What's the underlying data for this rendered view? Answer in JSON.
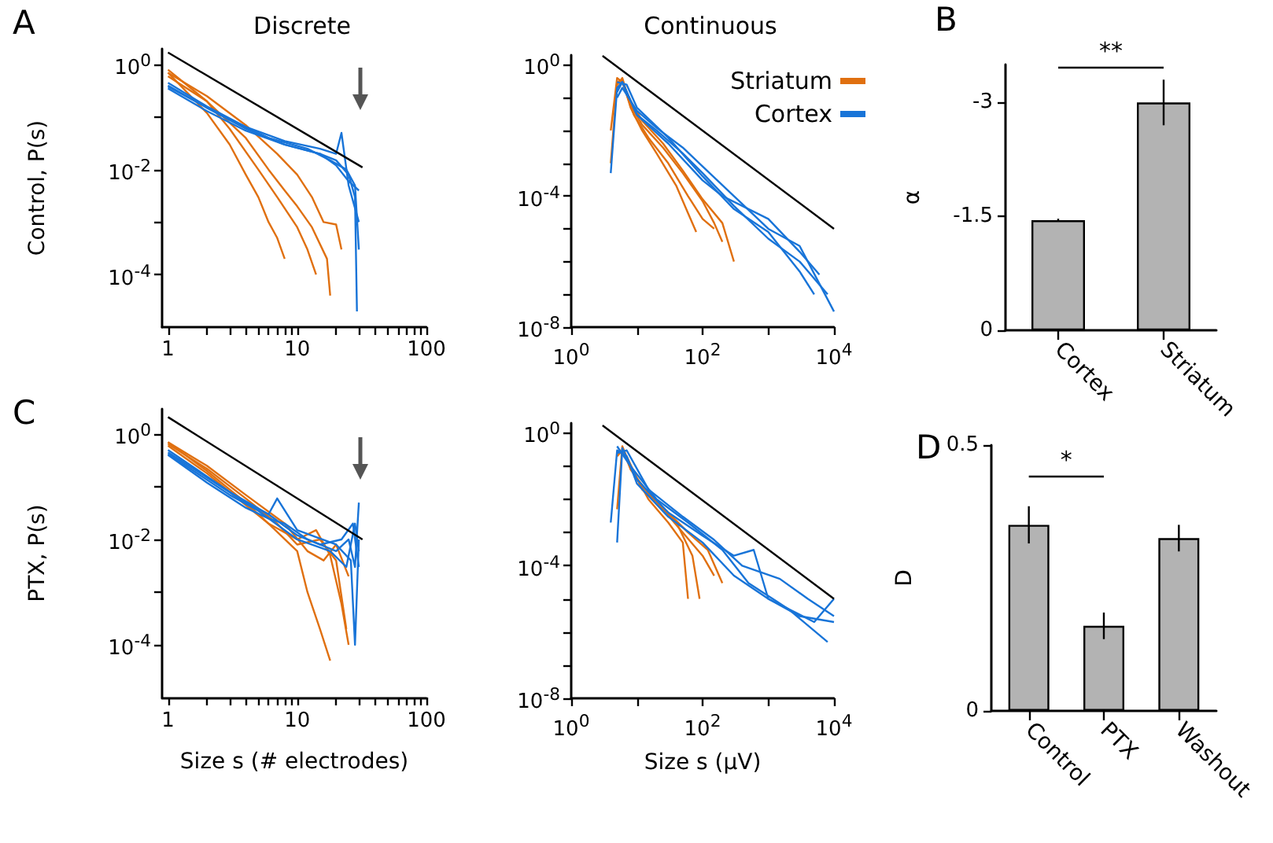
{
  "chart_data": [
    {
      "type": "line",
      "title": "Discrete",
      "ylabel": "Control, P(s)",
      "annotations": [
        "A"
      ],
      "log": "xy",
      "marker": "none",
      "xlim": [
        0.9,
        100
      ],
      "ylim": [
        1e-05,
        2
      ],
      "xticks": [
        1,
        {
          "value": 2,
          "label": null
        },
        {
          "value": 3,
          "label": null
        },
        {
          "value": 4,
          "label": null
        },
        {
          "value": 5,
          "label": null
        },
        {
          "value": 6,
          "label": null
        },
        {
          "value": 7,
          "label": null
        },
        {
          "value": 8,
          "label": null
        },
        {
          "value": 9,
          "label": null
        },
        10,
        {
          "value": 20,
          "label": null
        },
        {
          "value": 30,
          "label": null
        },
        {
          "value": 40,
          "label": null
        },
        {
          "value": 50,
          "label": null
        },
        {
          "value": 60,
          "label": null
        },
        {
          "value": 70,
          "label": null
        },
        {
          "value": 80,
          "label": null
        },
        {
          "value": 90,
          "label": null
        },
        100
      ],
      "yticks": [
        {
          "value": 1,
          "label": "10$^{0}$"
        },
        {
          "value": 0.1,
          "label": null
        },
        {
          "value": 0.01,
          "label": "10$^{-2}$"
        },
        {
          "value": 0.001,
          "label": null
        },
        {
          "value": 0.0001,
          "label": "10$^{-4}$"
        }
      ],
      "series": [
        {
          "color": "#e07010",
          "x": [
            1,
            2,
            3,
            4,
            5,
            6,
            7,
            8
          ],
          "values": [
            0.7,
            0.12,
            0.03,
            0.008,
            0.003,
            0.001,
            0.0005,
            0.0002
          ]
        },
        {
          "color": "#e07010",
          "x": [
            1,
            2,
            3,
            5,
            7,
            10,
            12,
            14
          ],
          "values": [
            0.8,
            0.2,
            0.06,
            0.01,
            0.003,
            0.0008,
            0.0003,
            0.0001
          ]
        },
        {
          "color": "#e07010",
          "x": [
            1,
            2,
            4,
            6,
            8,
            10,
            13,
            17,
            18
          ],
          "values": [
            0.6,
            0.2,
            0.04,
            0.01,
            0.004,
            0.002,
            0.0008,
            0.0002,
            4e-05
          ]
        },
        {
          "color": "#e07010",
          "x": [
            1,
            2,
            4,
            7,
            10,
            13,
            16,
            20,
            22
          ],
          "values": [
            0.7,
            0.25,
            0.07,
            0.02,
            0.008,
            0.003,
            0.001,
            0.0009,
            0.0003
          ]
        },
        {
          "color": "#1874d8",
          "x": [
            1,
            2,
            4,
            8,
            15,
            20,
            25,
            28,
            29
          ],
          "values": [
            0.4,
            0.15,
            0.06,
            0.03,
            0.02,
            0.015,
            0.008,
            0.003,
            2e-05
          ]
        },
        {
          "color": "#1874d8",
          "x": [
            1,
            2,
            4,
            8,
            15,
            20,
            25,
            30
          ],
          "values": [
            0.35,
            0.13,
            0.055,
            0.03,
            0.02,
            0.012,
            0.006,
            0.004
          ]
        },
        {
          "color": "#1874d8",
          "x": [
            1,
            2,
            4,
            8,
            15,
            20,
            22,
            25,
            30
          ],
          "values": [
            0.45,
            0.16,
            0.065,
            0.035,
            0.025,
            0.02,
            0.05,
            0.005,
            0.001
          ]
        },
        {
          "color": "#1874d8",
          "x": [
            1,
            3,
            6,
            12,
            18,
            24,
            28,
            30
          ],
          "values": [
            0.38,
            0.09,
            0.04,
            0.025,
            0.015,
            0.01,
            0.005,
            0.0003
          ]
        },
        {
          "color": "#000000",
          "x": [
            1,
            32
          ],
          "values": [
            1.7,
            0.011
          ]
        }
      ]
    },
    {
      "type": "line",
      "title": "Continuous",
      "legend": "top right",
      "log": "xy",
      "marker": "none",
      "xlim": [
        1,
        10000
      ],
      "ylim": [
        1e-08,
        2
      ],
      "xticks": [
        {
          "value": 1,
          "label": "10$^{0}$"
        },
        {
          "value": 10,
          "label": null
        },
        {
          "value": 100,
          "label": "10$^{2}$"
        },
        {
          "value": 1000,
          "label": null
        },
        {
          "value": 10000,
          "label": "10$^{4}$"
        }
      ],
      "yticks": [
        {
          "value": 1,
          "label": "10$^{0}$"
        },
        {
          "value": 0.1,
          "label": null
        },
        {
          "value": 0.01,
          "label": null
        },
        {
          "value": 0.001,
          "label": null
        },
        {
          "value": 0.0001,
          "label": "10$^{-4}$"
        },
        {
          "value": 1e-05,
          "label": null
        },
        {
          "value": 1e-06,
          "label": null
        },
        {
          "value": 1e-07,
          "label": null
        },
        {
          "value": 1e-08,
          "label": "10$^{-8}$"
        }
      ],
      "series": [
        {
          "name": "Striatum",
          "color": "#e07010",
          "x": [
            4,
            5,
            6,
            8,
            12,
            20,
            40,
            60,
            80
          ],
          "values": [
            0.001,
            0.3,
            0.35,
            0.05,
            0.01,
            0.002,
            0.0002,
            3e-05,
            8e-06
          ]
        },
        {
          "color": "#e07010",
          "x": [
            4,
            5,
            6,
            9,
            15,
            30,
            60,
            100,
            150
          ],
          "values": [
            0.01,
            0.4,
            0.3,
            0.03,
            0.006,
            0.001,
            0.0001,
            2e-05,
            1e-05
          ]
        },
        {
          "color": "#e07010",
          "x": [
            5,
            6,
            8,
            12,
            25,
            50,
            100,
            200,
            300
          ],
          "values": [
            0.2,
            0.3,
            0.08,
            0.02,
            0.004,
            0.0006,
            8e-05,
            1.5e-05,
            1e-06
          ]
        },
        {
          "color": "#e07010",
          "x": [
            5,
            6,
            8,
            12,
            25,
            50,
            100,
            150,
            200
          ],
          "values": [
            0.25,
            0.4,
            0.06,
            0.015,
            0.003,
            0.0005,
            7e-05,
            1.5e-05,
            4e-06
          ]
        },
        {
          "name": "Cortex",
          "color": "#1874d8",
          "x": [
            4,
            5,
            6,
            10,
            20,
            50,
            100,
            300,
            1000,
            3000,
            8000
          ],
          "values": [
            0.0005,
            0.2,
            0.3,
            0.03,
            0.01,
            0.002,
            0.0005,
            5e-05,
            5e-06,
            1e-06,
            1e-07
          ]
        },
        {
          "color": "#1874d8",
          "x": [
            5,
            6,
            10,
            20,
            50,
            100,
            300,
            1000,
            3000,
            10000
          ],
          "values": [
            0.1,
            0.2,
            0.04,
            0.012,
            0.003,
            0.0008,
            0.0001,
            1e-05,
            3e-06,
            3e-08
          ]
        },
        {
          "color": "#1874d8",
          "x": [
            5,
            7,
            10,
            30,
            100,
            300,
            1000,
            3000,
            5000
          ],
          "values": [
            0.3,
            0.25,
            0.05,
            0.006,
            0.0004,
            4e-05,
            8e-06,
            5e-07,
            1e-07
          ]
        },
        {
          "color": "#1874d8",
          "x": [
            5,
            6,
            10,
            30,
            100,
            200,
            1000,
            3000,
            6000
          ],
          "values": [
            0.15,
            0.3,
            0.03,
            0.004,
            0.0003,
            0.0001,
            2e-05,
            2e-06,
            4e-07
          ]
        },
        {
          "color": "#000000",
          "x": [
            3,
            10000
          ],
          "values": [
            1.9,
            1e-05
          ]
        }
      ]
    },
    {
      "type": "line",
      "ylabel": "PTX, P(s)",
      "xlabel": "Size s (# electrodes)",
      "annotations": [
        "C"
      ],
      "log": "xy",
      "marker": "none",
      "xlim": [
        0.9,
        100
      ],
      "ylim": [
        1e-05,
        3
      ],
      "xticks": [
        1,
        {
          "value": 2,
          "label": null
        },
        {
          "value": 3,
          "label": null
        },
        {
          "value": 4,
          "label": null
        },
        {
          "value": 5,
          "label": null
        },
        {
          "value": 6,
          "label": null
        },
        {
          "value": 7,
          "label": null
        },
        {
          "value": 8,
          "label": null
        },
        {
          "value": 9,
          "label": null
        },
        10,
        {
          "value": 20,
          "label": null
        },
        {
          "value": 30,
          "label": null
        },
        {
          "value": 40,
          "label": null
        },
        {
          "value": 50,
          "label": null
        },
        {
          "value": 60,
          "label": null
        },
        {
          "value": 70,
          "label": null
        },
        {
          "value": 80,
          "label": null
        },
        {
          "value": 90,
          "label": null
        },
        100
      ],
      "yticks": [
        {
          "value": 1,
          "label": "10$^{0}$"
        },
        {
          "value": 0.1,
          "label": null
        },
        {
          "value": 0.01,
          "label": "10$^{-2}$"
        },
        {
          "value": 0.001,
          "label": null
        },
        {
          "value": 0.0001,
          "label": "10$^{-4}$"
        }
      ],
      "series": [
        {
          "color": "#e07010",
          "x": [
            1,
            2,
            4,
            6,
            10,
            12,
            15,
            18
          ],
          "values": [
            0.7,
            0.2,
            0.05,
            0.02,
            0.006,
            0.001,
            0.0002,
            5e-05
          ]
        },
        {
          "color": "#e07010",
          "x": [
            1,
            2,
            4,
            6,
            10,
            14,
            18,
            22,
            25
          ],
          "values": [
            0.6,
            0.18,
            0.045,
            0.02,
            0.01,
            0.015,
            0.005,
            0.0006,
            0.0001
          ]
        },
        {
          "color": "#e07010",
          "x": [
            1,
            2,
            4,
            7,
            10,
            15,
            20,
            24
          ],
          "values": [
            0.65,
            0.22,
            0.06,
            0.02,
            0.008,
            0.01,
            0.004,
            0.0002
          ]
        },
        {
          "color": "#e07010",
          "x": [
            1,
            2,
            4,
            8,
            12,
            16,
            20,
            25
          ],
          "values": [
            0.7,
            0.25,
            0.07,
            0.02,
            0.006,
            0.004,
            0.008,
            0.002
          ]
        },
        {
          "color": "#1874d8",
          "x": [
            1,
            2,
            4,
            6,
            8,
            12,
            20,
            25,
            28,
            30
          ],
          "values": [
            0.4,
            0.12,
            0.04,
            0.025,
            0.02,
            0.01,
            0.006,
            0.01,
            0.003,
            0.05
          ]
        },
        {
          "color": "#1874d8",
          "x": [
            1,
            2,
            4,
            6,
            7,
            10,
            20,
            26,
            28,
            30
          ],
          "values": [
            0.45,
            0.15,
            0.05,
            0.03,
            0.06,
            0.015,
            0.008,
            0.004,
            0.0001,
            0.01
          ]
        },
        {
          "color": "#1874d8",
          "x": [
            1,
            3,
            6,
            10,
            15,
            22,
            27,
            30
          ],
          "values": [
            0.5,
            0.08,
            0.03,
            0.012,
            0.008,
            0.01,
            0.02,
            0.003
          ]
        },
        {
          "color": "#1874d8",
          "x": [
            1,
            3,
            5,
            10,
            18,
            24,
            28,
            30
          ],
          "values": [
            0.42,
            0.07,
            0.035,
            0.01,
            0.006,
            0.003,
            0.02,
            0.006
          ]
        },
        {
          "color": "#000000",
          "x": [
            1,
            32
          ],
          "values": [
            2.1,
            0.01
          ]
        }
      ]
    },
    {
      "type": "line",
      "xlabel": "Size s (μV)",
      "log": "xy",
      "marker": "none",
      "xlim": [
        1,
        10000
      ],
      "ylim": [
        1e-08,
        2
      ],
      "xticks": [
        {
          "value": 1,
          "label": "10$^{0}$"
        },
        {
          "value": 10,
          "label": null
        },
        {
          "value": 100,
          "label": "10$^{2}$"
        },
        {
          "value": 1000,
          "label": null
        },
        {
          "value": 10000,
          "label": "10$^{4}$"
        }
      ],
      "yticks": [
        {
          "value": 1,
          "label": "10$^{0}$"
        },
        {
          "value": 0.1,
          "label": null
        },
        {
          "value": 0.01,
          "label": null
        },
        {
          "value": 0.001,
          "label": null
        },
        {
          "value": 0.0001,
          "label": "10$^{-4}$"
        },
        {
          "value": 1e-05,
          "label": null
        },
        {
          "value": 1e-06,
          "label": null
        },
        {
          "value": 1e-07,
          "label": null
        },
        {
          "value": 1e-08,
          "label": "10$^{-8}$"
        }
      ],
      "series": [
        {
          "color": "#e07010",
          "x": [
            5,
            6,
            8,
            15,
            30,
            50,
            60
          ],
          "values": [
            0.005,
            0.4,
            0.1,
            0.01,
            0.002,
            0.0005,
            1e-05
          ]
        },
        {
          "color": "#e07010",
          "x": [
            5,
            6,
            10,
            20,
            40,
            70,
            90
          ],
          "values": [
            0.2,
            0.3,
            0.04,
            0.008,
            0.002,
            0.0002,
            1e-05
          ]
        },
        {
          "color": "#e07010",
          "x": [
            5,
            7,
            12,
            25,
            50,
            100,
            150
          ],
          "values": [
            0.3,
            0.2,
            0.02,
            0.005,
            0.001,
            0.0002,
            5e-05
          ]
        },
        {
          "color": "#e07010",
          "x": [
            6,
            8,
            15,
            30,
            60,
            120,
            200
          ],
          "values": [
            0.35,
            0.08,
            0.015,
            0.004,
            0.001,
            0.0003,
            3e-05
          ]
        },
        {
          "color": "#1874d8",
          "x": [
            4,
            5,
            7,
            10,
            30,
            100,
            300,
            1000,
            3000,
            10000
          ],
          "values": [
            0.002,
            0.3,
            0.2,
            0.03,
            0.003,
            0.0005,
            5e-05,
            1e-05,
            3e-06,
            2e-06
          ]
        },
        {
          "color": "#1874d8",
          "x": [
            5,
            6,
            10,
            30,
            100,
            300,
            600,
            1000,
            5000,
            10000
          ],
          "values": [
            0.0005,
            0.35,
            0.04,
            0.004,
            0.0008,
            0.0002,
            0.0003,
            1e-05,
            2e-06,
            1e-05
          ]
        },
        {
          "color": "#1874d8",
          "x": [
            5,
            8,
            20,
            60,
            200,
            500,
            2000,
            8000
          ],
          "values": [
            0.4,
            0.1,
            0.01,
            0.002,
            0.0003,
            3e-05,
            5e-06,
            5e-07
          ]
        },
        {
          "color": "#1874d8",
          "x": [
            5,
            7,
            15,
            50,
            150,
            400,
            1500,
            4000,
            10000
          ],
          "values": [
            0.25,
            0.3,
            0.02,
            0.003,
            0.0006,
            0.0001,
            4e-05,
            1e-05,
            3e-06
          ]
        },
        {
          "color": "#000000",
          "x": [
            3,
            10000
          ],
          "values": [
            1.7,
            1e-05
          ]
        }
      ]
    },
    {
      "type": "bar",
      "ylabel": "α",
      "annotations": [
        "B",
        "**"
      ],
      "categories": [
        "Cortex",
        "Striatum"
      ],
      "values": [
        -1.45,
        -3.0
      ],
      "errors": [
        0.02,
        0.3
      ],
      "color": "#b3b3b3",
      "ylim": [
        0,
        -3.5
      ],
      "yticks": [
        0,
        -1.5,
        -3
      ]
    },
    {
      "type": "bar",
      "ylabel": "D",
      "annotations": [
        "D",
        "*"
      ],
      "categories": [
        "Control",
        "PTX",
        "Washout"
      ],
      "values": [
        0.35,
        0.16,
        0.325
      ],
      "errors": [
        0.035,
        0.025,
        0.025
      ],
      "color": "#b3b3b3",
      "ylim": [
        0,
        0.5
      ],
      "yticks": [
        0,
        0.5
      ]
    }
  ]
}
